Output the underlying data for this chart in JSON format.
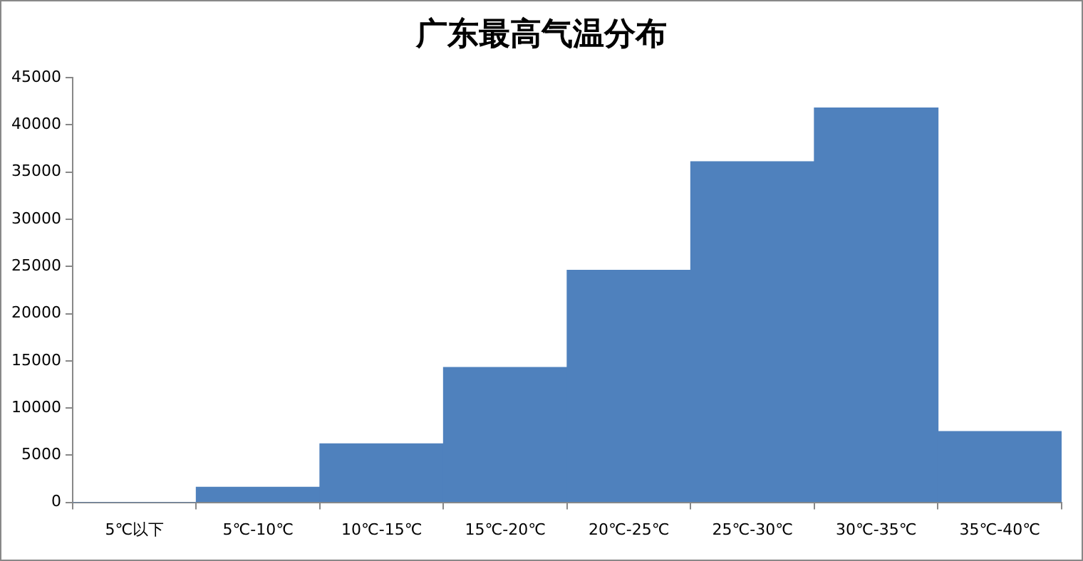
{
  "chart_data": {
    "type": "bar",
    "title": "广东最高气温分布",
    "categories": [
      "5℃以下",
      "5℃-10℃",
      "10℃-15℃",
      "15℃-20℃",
      "20℃-25℃",
      "25℃-30℃",
      "30℃-35℃",
      "35℃-40℃"
    ],
    "values": [
      0,
      1600,
      6200,
      14300,
      24600,
      36100,
      41800,
      7500
    ],
    "color": "#4f81bd",
    "ylim": [
      0,
      45000
    ],
    "yticks": [
      0,
      5000,
      10000,
      15000,
      20000,
      25000,
      30000,
      35000,
      40000,
      45000
    ],
    "grid": false,
    "legend": false
  }
}
